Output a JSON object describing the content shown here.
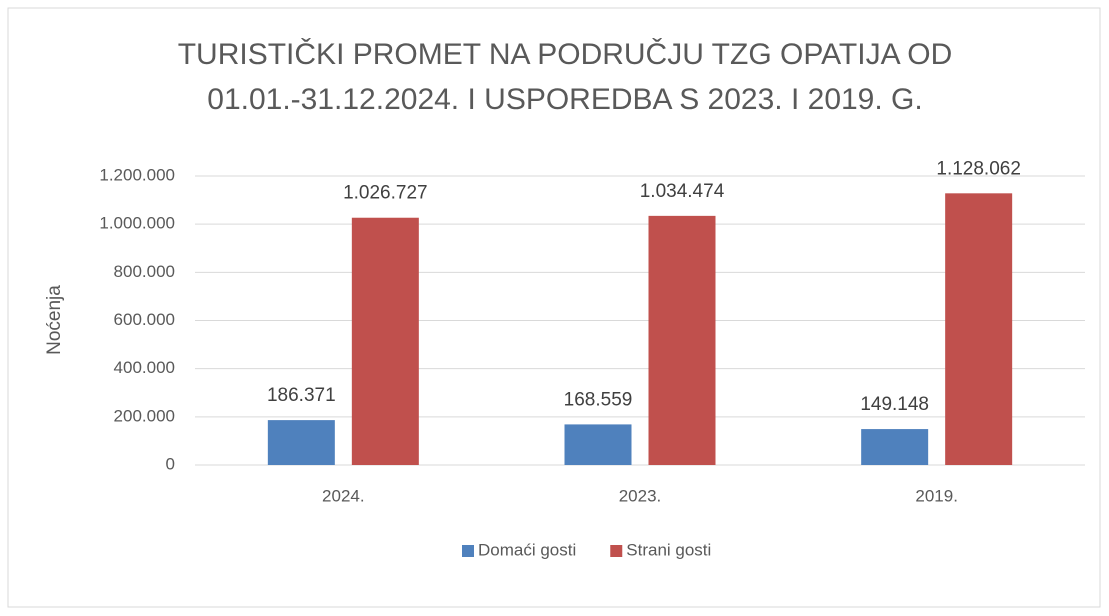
{
  "chart_data": {
    "type": "bar",
    "title": [
      "TURISTIČKI PROMET NA PODRUČJU TZG OPATIJA OD",
      "01.01.-31.12.2024. I USPOREDBA S 2023. I 2019. G."
    ],
    "y_label": "Noćenja",
    "categories": [
      "2024.",
      "2023.",
      "2019."
    ],
    "series": [
      {
        "name": "Domaći gosti",
        "color": "#4f81bd",
        "values": [
          186371,
          168559,
          149148
        ],
        "value_labels": [
          "186.371",
          "168.559",
          "149.148"
        ]
      },
      {
        "name": "Strani gosti",
        "color": "#c0504d",
        "values": [
          1026727,
          1034474,
          1128062
        ],
        "value_labels": [
          "1.026.727",
          "1.034.474",
          "1.128.062"
        ]
      }
    ],
    "ylim": [
      0,
      1200000
    ],
    "yticks": [
      0,
      {
        "value": 200000,
        "label": "200.000"
      },
      {
        "value": 400000,
        "label": "400.000"
      },
      {
        "value": 600000,
        "label": "600.000"
      },
      {
        "value": 800000,
        "label": "800.000"
      },
      {
        "value": 1000000,
        "label": "1.000.000"
      },
      {
        "value": 1200000,
        "label": "1.200.000"
      }
    ],
    "grid": true,
    "legend": "bottom"
  }
}
